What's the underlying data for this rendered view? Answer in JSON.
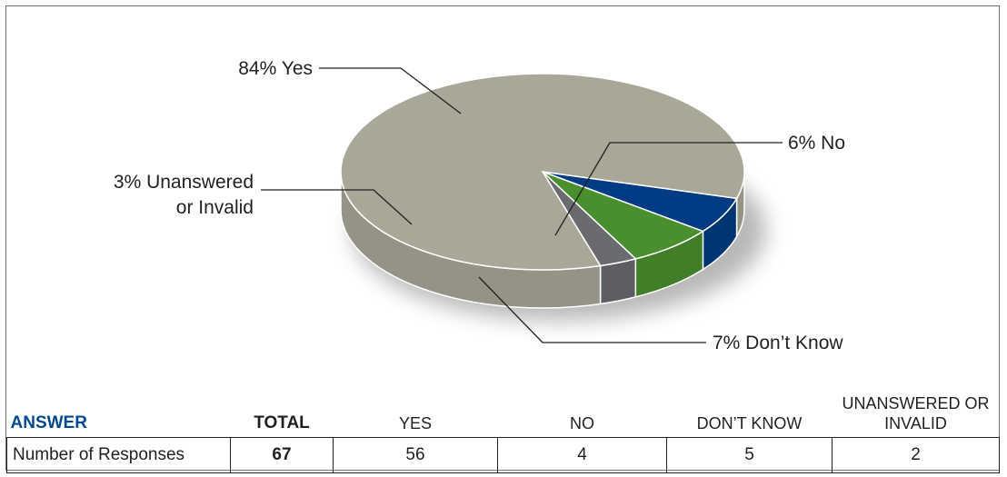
{
  "chart_data": {
    "type": "pie",
    "three_d": true,
    "slices": [
      {
        "label": "84% Yes",
        "category": "Yes",
        "percent": 84,
        "color": "#a9a797"
      },
      {
        "label": "6% No",
        "category": "No",
        "percent": 6,
        "color": "#003c83"
      },
      {
        "label": "7% Don’t Know",
        "category": "Don’t Know",
        "percent": 7,
        "color": "#4a8f2e"
      },
      {
        "label": "3% Unanswered or Invalid",
        "category": "Unanswered or Invalid",
        "percent": 3,
        "color": "#6a6b6e"
      }
    ]
  },
  "table": {
    "headers": {
      "answer": "ANSWER",
      "total": "TOTAL",
      "yes": "YES",
      "no": "NO",
      "dont_know": "DON’T KNOW",
      "unanswered_line1": "UNANSWERED OR",
      "unanswered_line2": "INVALID"
    },
    "row": {
      "label": "Number of Responses",
      "total": "67",
      "yes": "56",
      "no": "4",
      "dont_know": "5",
      "unanswered": "2"
    }
  },
  "colors": {
    "header_accent": "#004990"
  }
}
